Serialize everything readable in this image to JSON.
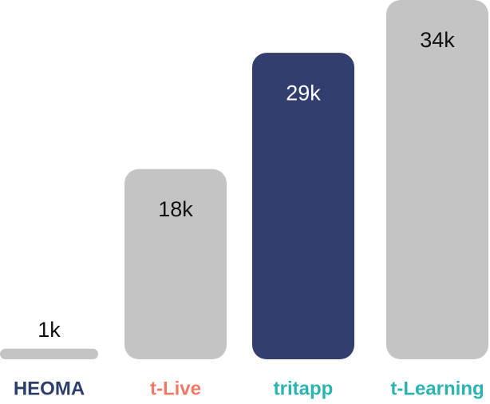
{
  "chart_data": {
    "type": "bar",
    "categories": [
      "HEOMA",
      "t-Live",
      "tritapp",
      "t-Learning"
    ],
    "values": [
      1,
      18,
      29,
      34
    ],
    "value_labels": [
      "1k",
      "18k",
      "29k",
      "34k"
    ],
    "colors": [
      "#c4c4c4",
      "#c4c4c4",
      "#313e6e",
      "#c4c4c4"
    ],
    "label_text_colors": [
      "#111111",
      "#111111",
      "#ffffff",
      "#111111"
    ],
    "category_colors": [
      "#2c3e6b",
      "#f07a6a",
      "#2ab3b0",
      "#2ab3b0"
    ]
  }
}
